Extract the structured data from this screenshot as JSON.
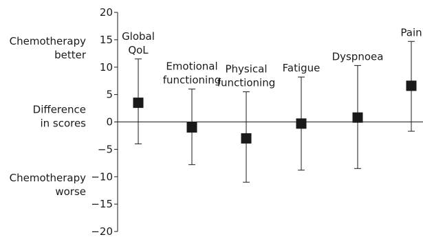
{
  "chart_data": {
    "type": "scatter",
    "subtype": "point-estimate-with-error-bars",
    "title": "",
    "xlabel": "",
    "ylabel": "",
    "ylim": [
      -20,
      20
    ],
    "yticks": [
      20,
      15,
      10,
      5,
      0,
      -5,
      -10,
      -15,
      -20
    ],
    "grid": false,
    "zero_line": true,
    "side_labels": [
      {
        "lines": [
          "Chemotherapy",
          "better"
        ],
        "y": 12.5
      },
      {
        "lines": [
          "Difference",
          "in scores"
        ],
        "y": 0
      },
      {
        "lines": [
          "Chemotherapy",
          "worse"
        ],
        "y": -12.5
      }
    ],
    "categories": [
      {
        "lines": [
          "Global",
          "QoL"
        ],
        "value": 3.5,
        "lower": -4.0,
        "upper": 11.5
      },
      {
        "lines": [
          "Emotional",
          "functioning"
        ],
        "value": -1.0,
        "lower": -7.8,
        "upper": 6.0
      },
      {
        "lines": [
          "Physical",
          "functioning"
        ],
        "value": -3.0,
        "lower": -11.0,
        "upper": 5.5
      },
      {
        "lines": [
          "Fatigue"
        ],
        "value": -0.3,
        "lower": -8.8,
        "upper": 8.2
      },
      {
        "lines": [
          "Dyspnoea"
        ],
        "value": 0.8,
        "lower": -8.5,
        "upper": 10.3
      },
      {
        "lines": [
          "Pain"
        ],
        "value": 6.6,
        "lower": -1.7,
        "upper": 14.7
      }
    ]
  }
}
